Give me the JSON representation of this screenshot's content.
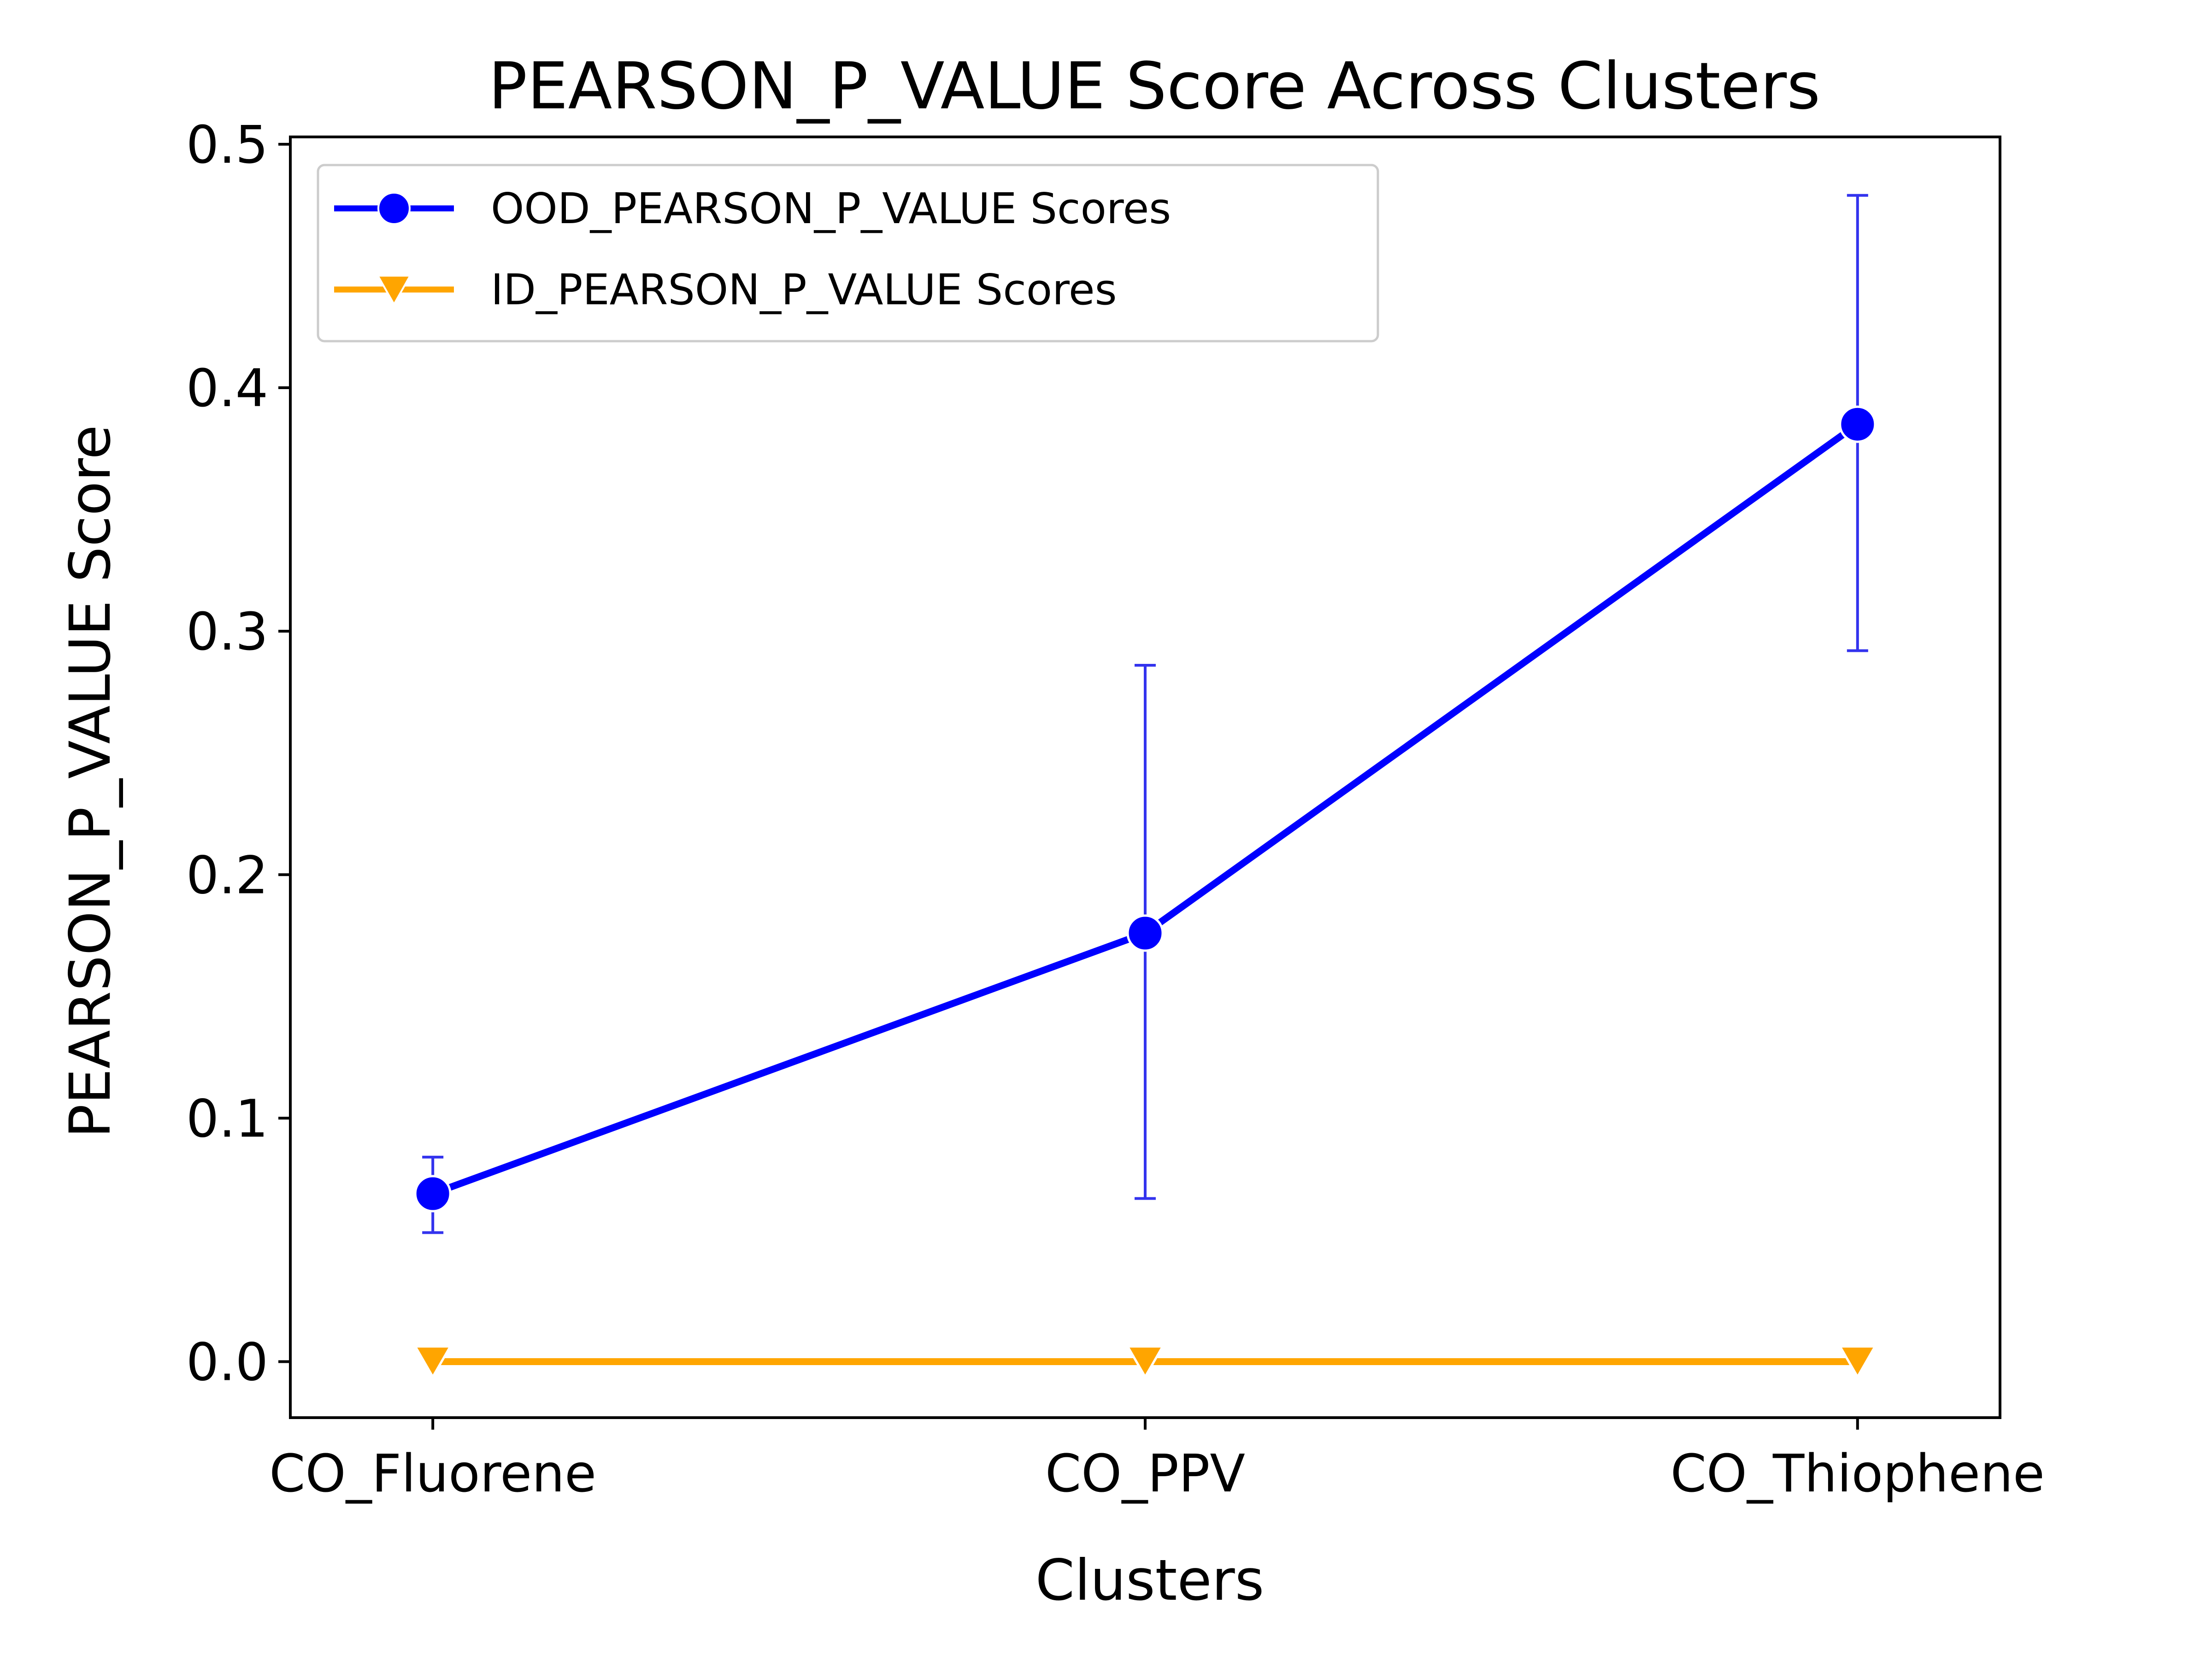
{
  "chart_data": {
    "type": "line",
    "title": "PEARSON_P_VALUE Score Across Clusters",
    "xlabel": "Clusters",
    "ylabel": "PEARSON_P_VALUE Score",
    "categories": [
      "CO_Fluorene",
      "CO_PPV",
      "CO_Thiophene"
    ],
    "ylim": [
      -0.023,
      0.503
    ],
    "yticks": [
      0.0,
      0.1,
      0.2,
      0.3,
      0.4,
      0.5
    ],
    "ytick_labels": [
      "0.0",
      "0.1",
      "0.2",
      "0.3",
      "0.4",
      "0.5"
    ],
    "grid": false,
    "legend_position": "top-left",
    "series": [
      {
        "name": "OOD_PEARSON_P_VALUE Scores",
        "values": [
          0.069,
          0.176,
          0.385
        ],
        "error_low": [
          0.053,
          0.067,
          0.292
        ],
        "error_high": [
          0.084,
          0.286,
          0.479
        ],
        "color": "#0000ff",
        "errorbar_color": "#3333ee",
        "marker": "circle"
      },
      {
        "name": "ID_PEARSON_P_VALUE Scores",
        "values": [
          0.0,
          0.0,
          0.0
        ],
        "color": "#ffa500",
        "marker": "triangle-down"
      }
    ]
  }
}
